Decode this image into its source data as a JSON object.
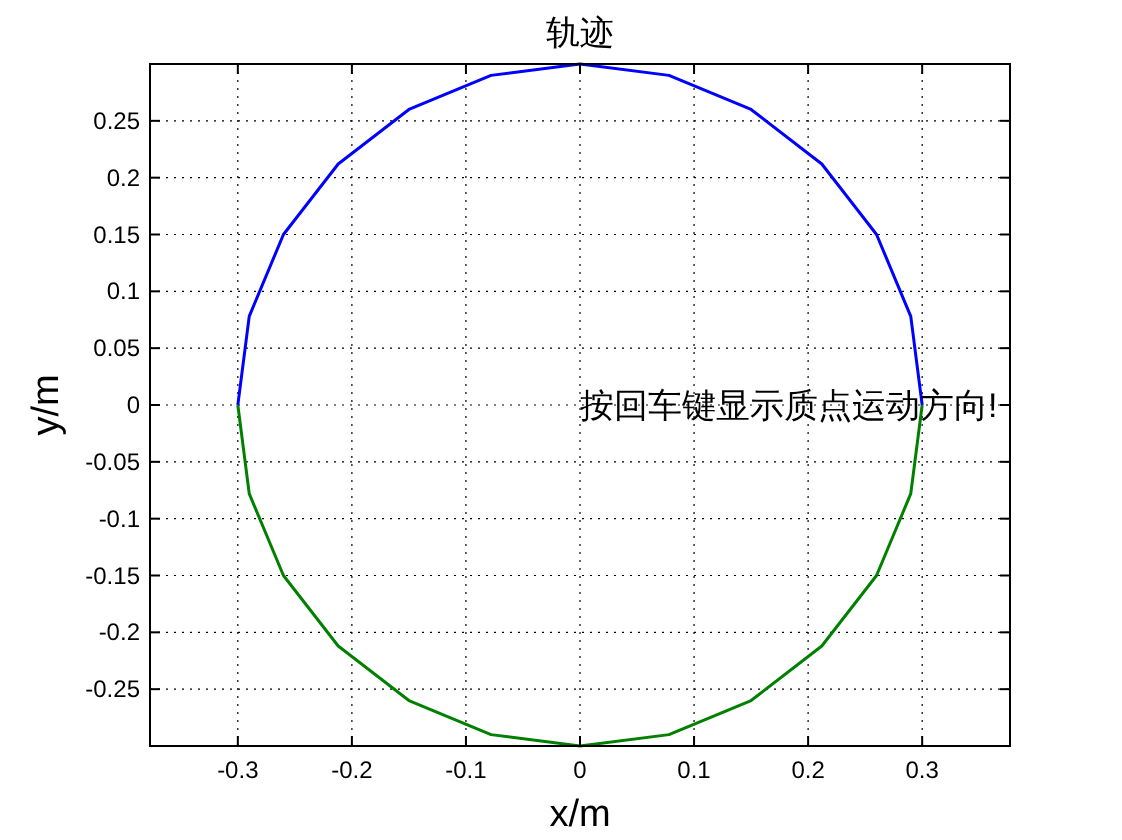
{
  "chart_data": {
    "type": "line",
    "title": "轨迹",
    "xlabel": "x/m",
    "ylabel": "y/m",
    "xlim": [
      -0.377,
      0.377
    ],
    "ylim": [
      -0.3,
      0.3
    ],
    "xticks": [
      -0.3,
      -0.2,
      -0.1,
      0,
      0.1,
      0.2,
      0.3
    ],
    "yticks": [
      -0.25,
      -0.2,
      -0.15,
      -0.1,
      -0.05,
      0,
      0.05,
      0.1,
      0.15,
      0.2,
      0.25
    ],
    "grid": true,
    "line_style": "solid",
    "marker": "none",
    "series": [
      {
        "color": "#0000ff",
        "x": [
          0.3,
          0.29,
          0.26,
          0.212,
          0.15,
          0.078,
          0,
          -0.078,
          -0.15,
          -0.212,
          -0.26,
          -0.29,
          -0.3
        ],
        "values": [
          0,
          0.078,
          0.15,
          0.212,
          0.26,
          0.29,
          0.3,
          0.29,
          0.26,
          0.212,
          0.15,
          0.078,
          0
        ]
      },
      {
        "color": "#008000",
        "x": [
          -0.3,
          -0.29,
          -0.26,
          -0.212,
          -0.15,
          -0.078,
          0,
          0.078,
          0.15,
          0.212,
          0.26,
          0.29,
          0.3
        ],
        "values": [
          0,
          -0.078,
          -0.15,
          -0.212,
          -0.26,
          -0.29,
          -0.3,
          -0.29,
          -0.26,
          -0.212,
          -0.15,
          -0.078,
          0
        ]
      }
    ],
    "annotations": [
      "按回车键显示质点运动方向!"
    ]
  }
}
